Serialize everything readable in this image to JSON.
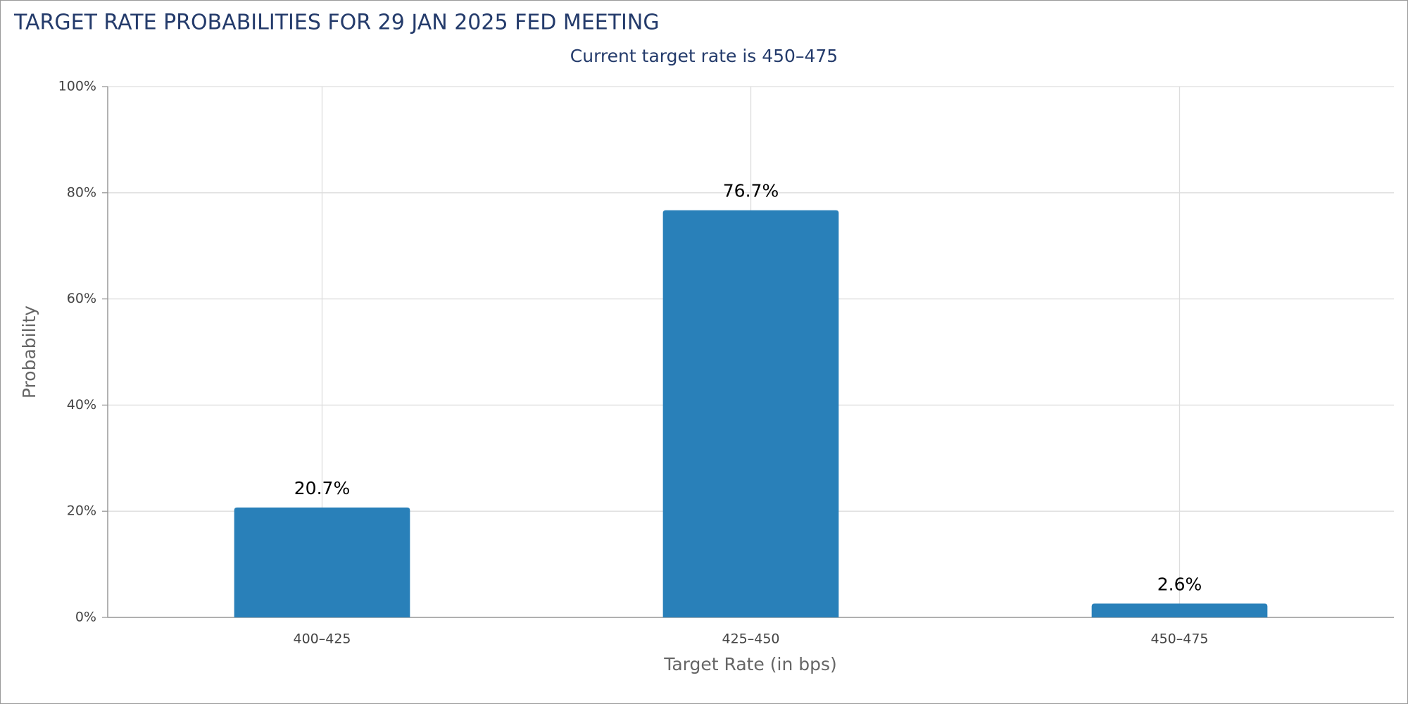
{
  "chart_data": {
    "type": "bar",
    "title": "TARGET RATE PROBABILITIES FOR 29 JAN 2025 FED MEETING",
    "subtitle": "Current target rate is 450–475",
    "x_label": "Target Rate (in bps)",
    "y_label": "Probability",
    "categories": [
      "400–425",
      "425–450",
      "450–475"
    ],
    "values": [
      20.7,
      76.7,
      2.6
    ],
    "value_labels": [
      "20.7%",
      "76.7%",
      "2.6%"
    ],
    "color": "#2980b9",
    "ylim": [
      0,
      100
    ],
    "yticks": [
      {
        "value": 0,
        "label": "0%"
      },
      {
        "value": 20,
        "label": "20%"
      },
      {
        "value": 40,
        "label": "40%"
      },
      {
        "value": 60,
        "label": "60%"
      },
      {
        "value": 80,
        "label": "80%"
      },
      {
        "value": 100,
        "label": "100%"
      }
    ],
    "grid": true
  }
}
